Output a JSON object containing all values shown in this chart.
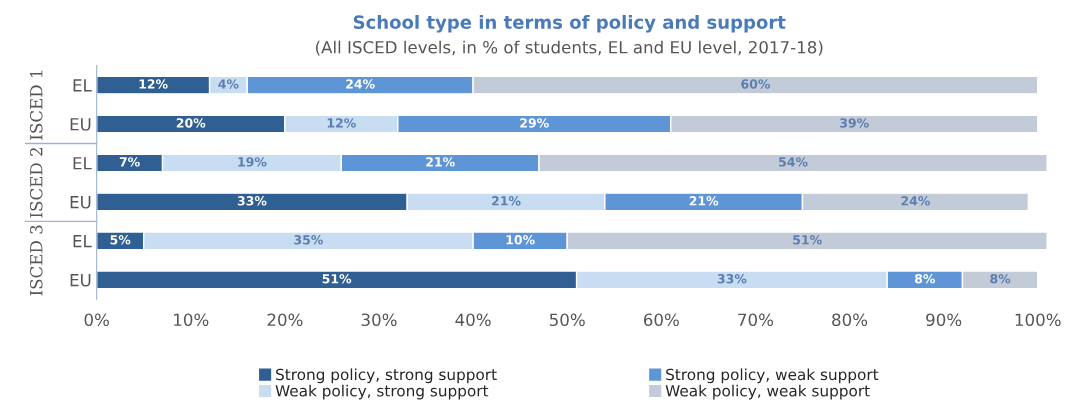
{
  "chart_data": {
    "type": "bar",
    "orientation": "horizontal",
    "stacked": true,
    "title": "School type in terms of policy and support",
    "subtitle": "(All ISCED levels, in % of students, EL and EU level, 2017-18)",
    "categories": [
      "EL",
      "EU",
      "EL",
      "EU",
      "EL",
      "EU"
    ],
    "annotations": [
      "ISCED 1",
      "ISCED 2",
      "ISCED 3"
    ],
    "series": [
      {
        "name": "Strong policy, strong support",
        "color": "#2f5f93",
        "values": [
          12,
          20,
          7,
          33,
          5,
          51
        ],
        "value_labels": [
          "12%",
          "20%",
          "7%",
          "33%",
          "5%",
          "51%"
        ]
      },
      {
        "name": "Weak policy, strong support",
        "color": "#c8dcf2",
        "values": [
          4,
          12,
          19,
          21,
          35,
          33
        ],
        "value_labels": [
          "4%",
          "12%",
          "19%",
          "21%",
          "35%",
          "33%"
        ]
      },
      {
        "name": "Strong policy, weak support",
        "color": "#5d95d6",
        "values": [
          24,
          29,
          21,
          21,
          10,
          8
        ],
        "value_labels": [
          "24%",
          "29%",
          "21%",
          "21%",
          "10%",
          "8%"
        ]
      },
      {
        "name": "Weak policy, weak support",
        "color": "#c4cbd8",
        "values": [
          60,
          39,
          54,
          24,
          51,
          8
        ],
        "value_labels": [
          "60%",
          "39%",
          "54%",
          "24%",
          "51%",
          "8%"
        ]
      }
    ],
    "xlim": [
      0,
      101
    ],
    "xticks": [
      {
        "value": 0,
        "label": "0%"
      },
      {
        "value": 10,
        "label": "10%"
      },
      {
        "value": 20,
        "label": "20%"
      },
      {
        "value": 30,
        "label": "30%"
      },
      {
        "value": 40,
        "label": "40%"
      },
      {
        "value": 50,
        "label": "50%"
      },
      {
        "value": 60,
        "label": "60%"
      },
      {
        "value": 70,
        "label": "70%"
      },
      {
        "value": 80,
        "label": "80%"
      },
      {
        "value": 90,
        "label": "90%"
      },
      {
        "value": 100,
        "label": "100%"
      }
    ],
    "grid": false,
    "legend": "bottom"
  }
}
